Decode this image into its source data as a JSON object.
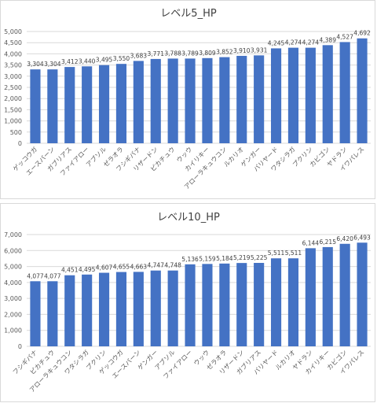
{
  "chart_data": [
    {
      "type": "bar",
      "title": "レベル5_HP",
      "color": "#4472c4",
      "grid": true,
      "categories": [
        "ゲッコウガ",
        "エースバーン",
        "ガブリアス",
        "ファイアロー",
        "アブソル",
        "ゼラオラ",
        "フシギバナ",
        "リザードン",
        "ピカチュウ",
        "ウッウ",
        "カイリキー",
        "アローラキュウコン",
        "ルカリオ",
        "ゲンガー",
        "バリヤード",
        "ワタシラガ",
        "プクリン",
        "カビゴン",
        "ヤドラン",
        "イワパレス"
      ],
      "values": [
        3304,
        3304,
        3412,
        3440,
        3495,
        3550,
        3683,
        3771,
        3788,
        3789,
        3809,
        3852,
        3910,
        3931,
        4245,
        4274,
        4274,
        4389,
        4527,
        4692
      ],
      "value_labels": [
        "3,304",
        "3,304",
        "3,412",
        "3,440",
        "3,495",
        "3,550",
        "3,683",
        "3,771",
        "3,788",
        "3,789",
        "3,809",
        "3,852",
        "3,910",
        "3,931",
        "4,245",
        "4,274",
        "4,274",
        "4,389",
        "4,527",
        "4,692"
      ],
      "ylim": [
        0,
        5000
      ],
      "yticks": [
        0,
        500,
        {
          "value": 1000,
          "label": "1,000"
        },
        {
          "value": 1500,
          "label": "1,500"
        },
        {
          "value": 2000,
          "label": "2,000"
        },
        {
          "value": 2500,
          "label": "2,500"
        },
        {
          "value": 3000,
          "label": "3,000"
        },
        {
          "value": 3500,
          "label": "3,500"
        },
        {
          "value": 4000,
          "label": "4,000"
        },
        {
          "value": 4500,
          "label": "4,500"
        },
        {
          "value": 5000,
          "label": "5,000"
        }
      ]
    },
    {
      "type": "bar",
      "title": "レベル10_HP",
      "color": "#4472c4",
      "grid": true,
      "categories": [
        "フシギバナ",
        "ピカチュウ",
        "アローラキュウコン",
        "ワタシラガ",
        "プクリン",
        "ゲッコウガ",
        "エースバーン",
        "ゲンガー",
        "アブソル",
        "ファイアロー",
        "ウッウ",
        "ゼラオラ",
        "リザードン",
        "ガブリアス",
        "バリヤード",
        "ルカリオ",
        "ヤドラン",
        "カイリキー",
        "カビゴン",
        "イワパレス"
      ],
      "values": [
        4077,
        4077,
        4451,
        4495,
        4607,
        4655,
        4663,
        4747,
        4748,
        5136,
        5159,
        5184,
        5219,
        5225,
        5511,
        5511,
        6144,
        6215,
        6420,
        6493
      ],
      "value_labels": [
        "4,077",
        "4,077",
        "4,451",
        "4,495",
        "4,607",
        "4,655",
        "4,663",
        "4,747",
        "4,748",
        "5,136",
        "5,159",
        "5,184",
        "5,219",
        "5,225",
        "5,511",
        "5,511",
        "6,144",
        "6,215",
        "6,420",
        "6,493"
      ],
      "ylim": [
        0,
        7000
      ],
      "yticks": [
        0,
        {
          "value": 1000,
          "label": "1,000"
        },
        {
          "value": 2000,
          "label": "2,000"
        },
        {
          "value": 3000,
          "label": "3,000"
        },
        {
          "value": 4000,
          "label": "4,000"
        },
        {
          "value": 5000,
          "label": "5,000"
        },
        {
          "value": 6000,
          "label": "6,000"
        },
        {
          "value": 7000,
          "label": "7,000"
        }
      ]
    }
  ]
}
